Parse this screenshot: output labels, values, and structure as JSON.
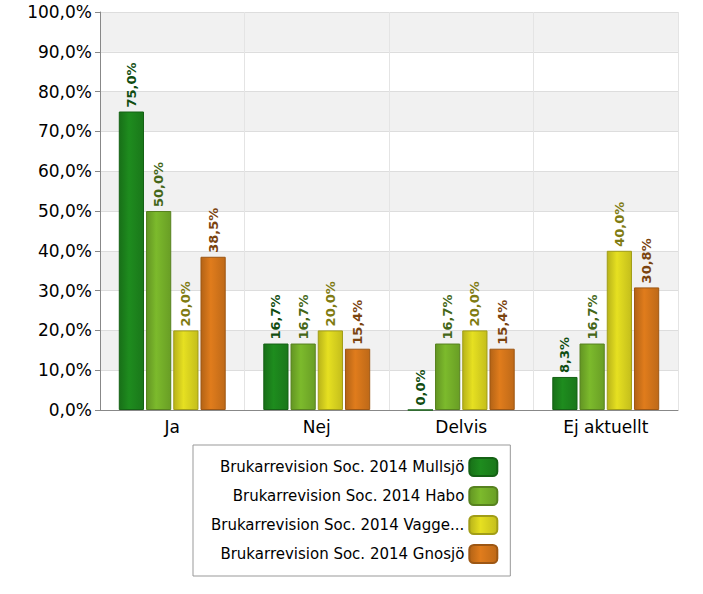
{
  "chart_data": {
    "type": "bar",
    "categories": [
      "Ja",
      "Nej",
      "Delvis",
      "Ej aktuellt"
    ],
    "series": [
      {
        "name": "Brukarrevision Soc. 2014 Mullsjö",
        "color": "#1e8c1e",
        "values": [
          75.0,
          16.7,
          0.0,
          8.3
        ],
        "value_labels": [
          "75,0%",
          "16,7%",
          "0,0%",
          "8,3%"
        ]
      },
      {
        "name": "Brukarrevision Soc. 2014 Habo",
        "color": "#7cba2c",
        "values": [
          50.0,
          16.7,
          16.7,
          16.7
        ],
        "value_labels": [
          "50,0%",
          "16,7%",
          "16,7%",
          "16,7%"
        ]
      },
      {
        "name": "Brukarrevision Soc. 2014 Vagge...",
        "color": "#e6e021",
        "values": [
          20.0,
          20.0,
          20.0,
          40.0
        ],
        "value_labels": [
          "20,0%",
          "20,0%",
          "20,0%",
          "40,0%"
        ]
      },
      {
        "name": "Brukarrevision Soc. 2014 Gnosjö",
        "color": "#e07c1c",
        "values": [
          38.5,
          15.4,
          15.4,
          30.8
        ],
        "value_labels": [
          "38,5%",
          "15,4%",
          "15,4%",
          "30,8%"
        ]
      }
    ],
    "ylim": [
      0,
      100
    ],
    "yticks": [
      {
        "value": 0,
        "label": "0,0%"
      },
      {
        "value": 10,
        "label": "10,0%"
      },
      {
        "value": 20,
        "label": "20,0%"
      },
      {
        "value": 30,
        "label": "30,0%"
      },
      {
        "value": 40,
        "label": "40,0%"
      },
      {
        "value": 50,
        "label": "50,0%"
      },
      {
        "value": 60,
        "label": "60,0%"
      },
      {
        "value": 70,
        "label": "70,0%"
      },
      {
        "value": 80,
        "label": "80,0%"
      },
      {
        "value": 90,
        "label": "90,0%"
      },
      {
        "value": 100,
        "label": "100,0%"
      }
    ],
    "grid": true,
    "legend": "bottom",
    "data_labels": true
  }
}
